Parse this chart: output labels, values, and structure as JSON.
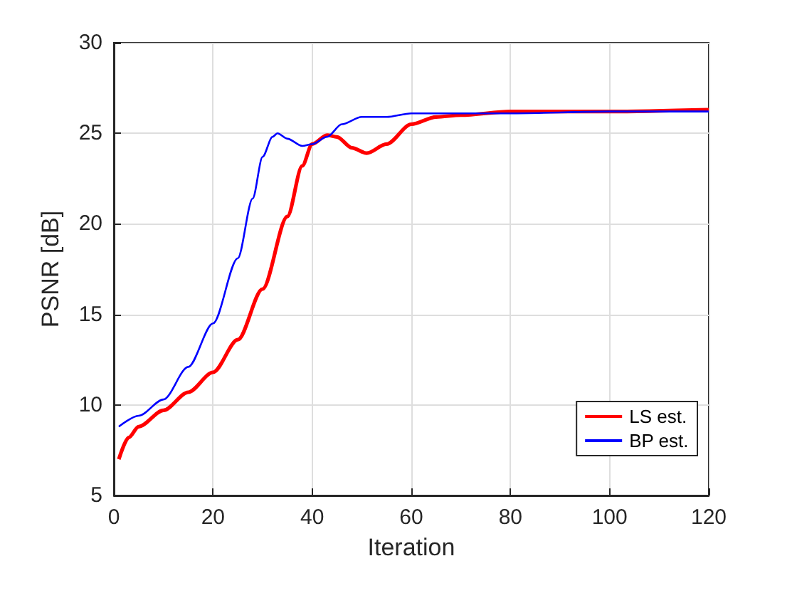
{
  "chart_data": {
    "type": "line",
    "xlabel": "Iteration",
    "ylabel": "PSNR [dB]",
    "xlim": [
      0,
      120
    ],
    "xticks": [
      0,
      20,
      40,
      60,
      80,
      100,
      120
    ],
    "ylim": [
      5,
      30
    ],
    "yticks": [
      5,
      10,
      15,
      20,
      25,
      30
    ],
    "grid": true,
    "legend": "bottom right",
    "marker": "none",
    "line_style": "solid",
    "series": [
      {
        "name": "LS est.",
        "color": "#ff0000",
        "x": [
          1,
          3,
          5,
          10,
          15,
          20,
          25,
          30,
          35,
          38,
          40,
          43,
          45,
          48,
          51,
          55,
          60,
          65,
          70,
          80,
          100,
          120
        ],
        "values": [
          7.0,
          8.2,
          8.8,
          9.7,
          10.7,
          11.8,
          13.6,
          16.4,
          20.4,
          23.2,
          24.4,
          24.9,
          24.8,
          24.2,
          23.9,
          24.4,
          25.5,
          25.9,
          26.0,
          26.2,
          26.2,
          26.3
        ]
      },
      {
        "name": "BP est.",
        "color": "#0000ff",
        "x": [
          1,
          5,
          10,
          15,
          20,
          25,
          28,
          30,
          32,
          33,
          35,
          38,
          40,
          43,
          46,
          50,
          55,
          60,
          80,
          100,
          120
        ],
        "values": [
          8.8,
          9.4,
          10.3,
          12.1,
          14.5,
          18.1,
          21.4,
          23.7,
          24.8,
          25.0,
          24.7,
          24.3,
          24.4,
          24.8,
          25.5,
          25.9,
          25.9,
          26.1,
          26.1,
          26.2,
          26.2
        ]
      }
    ]
  }
}
